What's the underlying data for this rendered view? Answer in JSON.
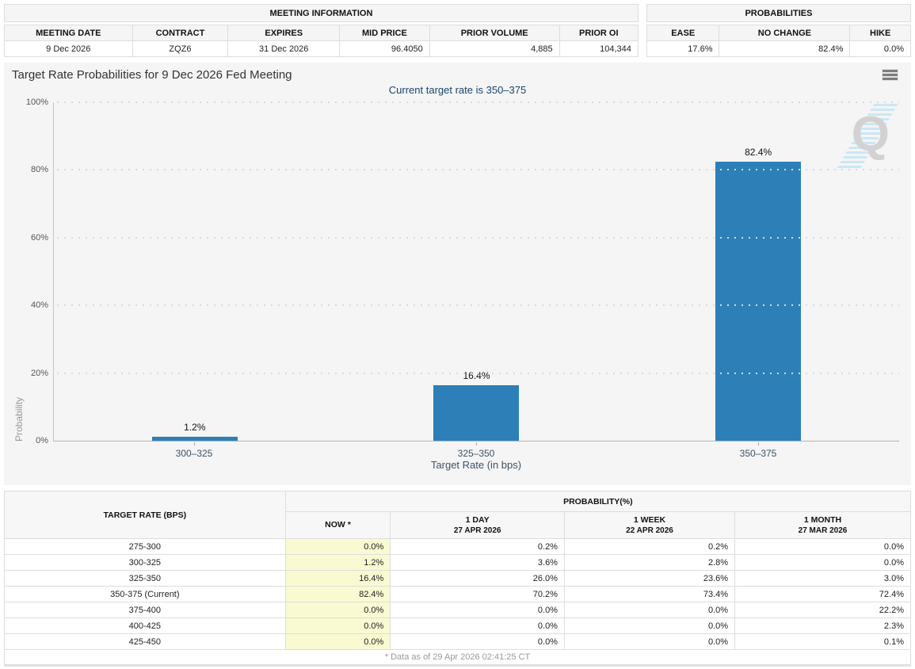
{
  "meeting_info": {
    "title": "MEETING INFORMATION",
    "headers": [
      "MEETING DATE",
      "CONTRACT",
      "EXPIRES",
      "MID PRICE",
      "PRIOR VOLUME",
      "PRIOR OI"
    ],
    "values": [
      "9 Dec 2026",
      "ZQZ6",
      "31 Dec 2026",
      "96.4050",
      "4,885",
      "104,344"
    ]
  },
  "probabilities_summary": {
    "title": "PROBABILITIES",
    "headers": [
      "EASE",
      "NO CHANGE",
      "HIKE"
    ],
    "values": [
      "17.6%",
      "82.4%",
      "0.0%"
    ]
  },
  "chart": {
    "title": "Target Rate Probabilities for 9 Dec 2026 Fed Meeting",
    "subtitle": "Current target rate is 350–375",
    "menu_icon": "hamburger-icon",
    "watermark": "QuikStrike Q logo"
  },
  "chart_data": {
    "type": "bar",
    "categories": [
      "300–325",
      "325–350",
      "350–375"
    ],
    "values": [
      1.2,
      16.4,
      82.4
    ],
    "value_labels": [
      "1.2%",
      "16.4%",
      "82.4%"
    ],
    "title": "Target Rate Probabilities for 9 Dec 2026 Fed Meeting",
    "subtitle": "Current target rate is 350–375",
    "xlabel": "Target Rate (in bps)",
    "ylabel": "Probability",
    "ylim": [
      0,
      100
    ],
    "yticks": [
      "0%",
      "20%",
      "40%",
      "60%",
      "80%",
      "100%"
    ],
    "grid": "dotted horizontal gridlines, light gray plot background",
    "legend": "none"
  },
  "probability_table": {
    "col1_header": "TARGET RATE (BPS)",
    "group_header": "PROBABILITY(%)",
    "columns": [
      {
        "label": "NOW *",
        "sub": ""
      },
      {
        "label": "1 DAY",
        "sub": "27 APR 2026"
      },
      {
        "label": "1 WEEK",
        "sub": "22 APR 2026"
      },
      {
        "label": "1 MONTH",
        "sub": "27 MAR 2026"
      }
    ],
    "rows": [
      {
        "rate": "275-300",
        "now": "0.0%",
        "day": "0.2%",
        "week": "0.2%",
        "month": "0.0%"
      },
      {
        "rate": "300-325",
        "now": "1.2%",
        "day": "3.6%",
        "week": "2.8%",
        "month": "0.0%"
      },
      {
        "rate": "325-350",
        "now": "16.4%",
        "day": "26.0%",
        "week": "23.6%",
        "month": "3.0%"
      },
      {
        "rate": "350-375 (Current)",
        "now": "82.4%",
        "day": "70.2%",
        "week": "73.4%",
        "month": "72.4%"
      },
      {
        "rate": "375-400",
        "now": "0.0%",
        "day": "0.0%",
        "week": "0.0%",
        "month": "22.2%"
      },
      {
        "rate": "400-425",
        "now": "0.0%",
        "day": "0.0%",
        "week": "0.0%",
        "month": "2.3%"
      },
      {
        "rate": "425-450",
        "now": "0.0%",
        "day": "0.0%",
        "week": "0.0%",
        "month": "0.1%"
      }
    ],
    "footnote": "* Data as of 29 Apr 2026 02:41:25 CT"
  },
  "colors": {
    "bar": "#2d7fb8",
    "now_column_bg": "#fafad2",
    "panel_bg": "#f5f5f5",
    "subtitle_text": "#17456e"
  }
}
